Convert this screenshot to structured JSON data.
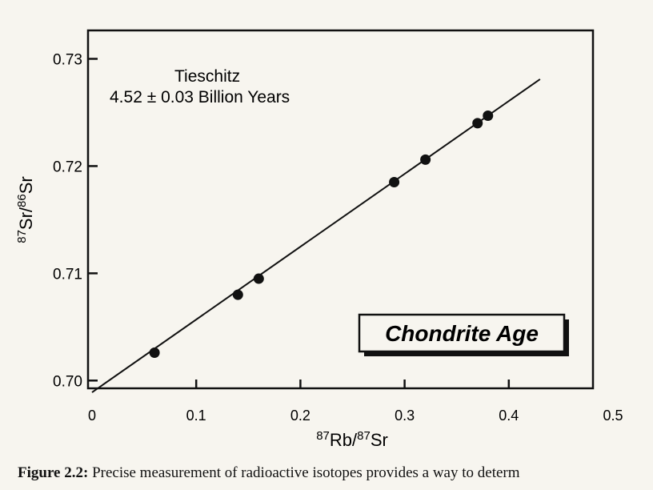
{
  "chart_data": {
    "type": "scatter",
    "annotation_title": "Tieschitz",
    "annotation_age": "4.52 ± 0.03 Billion Years",
    "boxed_label": "Chondrite Age",
    "xlabel_sup1": "87",
    "xlabel_sym1": "Rb/",
    "xlabel_sup2": "87",
    "xlabel_sym2": "Sr",
    "ylabel_sup1": "87",
    "ylabel_sym1": "Sr/",
    "ylabel_sup2": "86",
    "ylabel_sym2": "Sr",
    "xlim": [
      0,
      0.5
    ],
    "ylim": [
      0.6995,
      0.7325
    ],
    "xticks": [
      0,
      0.1,
      0.2,
      0.3,
      0.4,
      0.5
    ],
    "xtick_labels": [
      "0",
      "0.1",
      "0.2",
      "0.3",
      "0.4",
      "0.5"
    ],
    "yticks": [
      0.7,
      0.71,
      0.72,
      0.73
    ],
    "ytick_labels": [
      "0.70",
      "0.71",
      "0.72",
      "0.73"
    ],
    "points": [
      {
        "x": 0.06,
        "y": 0.7026
      },
      {
        "x": 0.14,
        "y": 0.708
      },
      {
        "x": 0.16,
        "y": 0.7095
      },
      {
        "x": 0.29,
        "y": 0.7185
      },
      {
        "x": 0.32,
        "y": 0.7206
      },
      {
        "x": 0.37,
        "y": 0.724
      },
      {
        "x": 0.38,
        "y": 0.7247
      }
    ],
    "fit_line": {
      "x": [
        0,
        0.43
      ],
      "y": [
        0.6989,
        0.7281
      ]
    },
    "grid": false
  },
  "caption": {
    "label": "Figure 2.2:",
    "text": "Precise measurement of radioactive isotopes provides a way to determ"
  },
  "colors": {
    "ink": "#111111",
    "paper": "#f7f5ef",
    "bleed_text": "#9a9893"
  }
}
